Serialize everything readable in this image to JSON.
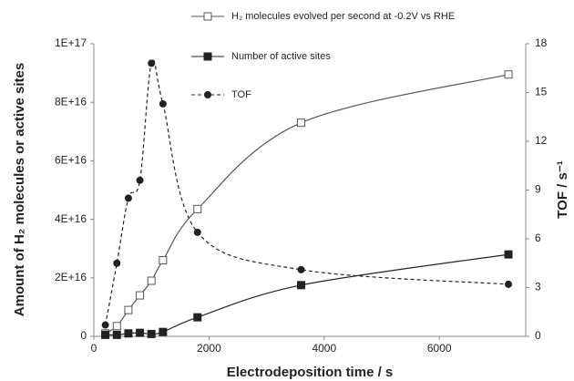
{
  "chart_data": {
    "type": "line",
    "x_label": "Electrodeposition time / s",
    "y_label": "Amount of H₂ molecules or active sites",
    "y2_label": "TOF / s⁻¹",
    "x": [
      200,
      400,
      600,
      800,
      1000,
      1200,
      1800,
      3600,
      7200
    ],
    "series": [
      {
        "name": "H₂ molecules evolved per second at -0.2V vs RHE",
        "color": "#555555",
        "marker": "open-square",
        "dash": false,
        "values": [
          1000000000000000.0,
          3500000000000000.0,
          9000000000000000.0,
          1.4e+16,
          1.9e+16,
          2.6e+16,
          4.35e+16,
          7.3e+16,
          8.95e+16
        ]
      },
      {
        "name": "Number of active sites",
        "color": "#222222",
        "marker": "filled-square",
        "dash": false,
        "values": [
          500000000000000.0,
          500000000000000.0,
          1000000000000000.0,
          1200000000000000.0,
          800000000000000.0,
          1500000000000000.0,
          6500000000000000.0,
          1.75e+16,
          2.8e+16
        ]
      },
      {
        "name": "TOF",
        "color": "#222222",
        "marker": "filled-circle",
        "dash": true,
        "axis": "y2",
        "values": [
          0.7,
          4.5,
          8.5,
          9.6,
          16.8,
          14.3,
          6.4,
          4.1,
          3.2
        ]
      }
    ],
    "xlim": [
      0,
      7500
    ],
    "xticks": [
      0,
      2000,
      4000,
      6000
    ],
    "ylim": [
      0,
      1e+17
    ],
    "yticks": [
      0,
      {
        "value": 2e+16,
        "label": "2E+16"
      },
      {
        "value": 4e+16,
        "label": "4E+16"
      },
      {
        "value": 6e+16,
        "label": "6E+16"
      },
      {
        "value": 8e+16,
        "label": "8E+16"
      },
      {
        "value": 1e+17,
        "label": "1E+17"
      }
    ],
    "y2lim": [
      0,
      18
    ],
    "y2ticks": [
      0,
      3,
      6,
      9,
      12,
      15,
      18
    ]
  }
}
